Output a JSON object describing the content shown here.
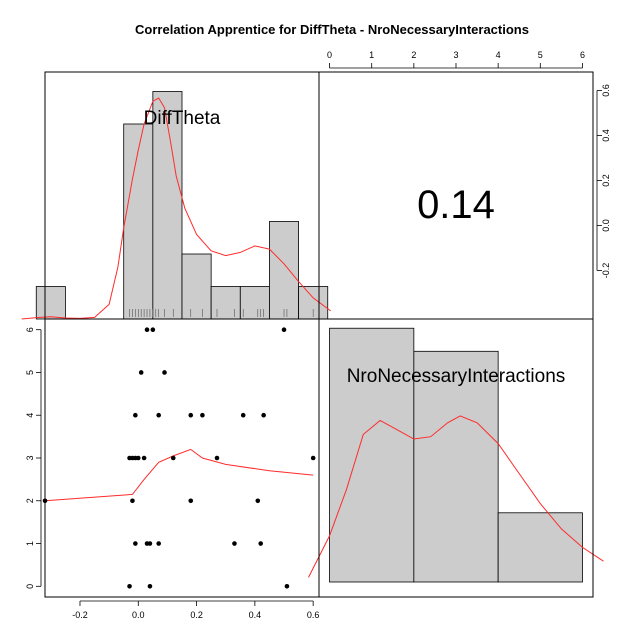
{
  "chart_data": {
    "type": "scatter",
    "title": "Correlation Apprentice for DiffTheta - NroNecessaryInteractions",
    "variables": [
      "DiffTheta",
      "NroNecessaryInteractions"
    ],
    "correlation_label": "0.14",
    "colors": {
      "hist_fill": "#cccccc",
      "density_line": "#ff2b2b",
      "frame": "#000000"
    },
    "axes": {
      "DiffTheta": {
        "range": [
          -0.32,
          0.62
        ],
        "ticks": [
          -0.2,
          0.0,
          0.2,
          0.4,
          0.6
        ],
        "tick_labels": [
          "-0.2",
          "0.0",
          "0.2",
          "0.4",
          "0.6"
        ]
      },
      "NroNecessaryInteractions": {
        "range": [
          -0.25,
          6.25
        ],
        "ticks": [
          0,
          1,
          2,
          3,
          4,
          5,
          6
        ],
        "tick_labels": [
          "0",
          "1",
          "2",
          "3",
          "4",
          "5",
          "6"
        ]
      },
      "top_axis": {
        "ticks": [
          0,
          1,
          2,
          3,
          4,
          5,
          6
        ],
        "tick_labels": [
          "0",
          "1",
          "2",
          "3",
          "4",
          "5",
          "6"
        ]
      },
      "right_axis": {
        "ticks": [
          -0.2,
          0.0,
          0.2,
          0.4,
          0.6
        ],
        "tick_labels": [
          "-0.2",
          "0.0",
          "0.2",
          "0.4",
          "0.6"
        ]
      }
    },
    "hist_difftheta": {
      "bins": [
        [
          -0.35,
          -0.25
        ],
        [
          -0.05,
          0.05
        ],
        [
          0.05,
          0.15
        ],
        [
          0.15,
          0.25
        ],
        [
          0.25,
          0.35
        ],
        [
          0.35,
          0.45
        ],
        [
          0.45,
          0.55
        ],
        [
          0.55,
          0.65
        ]
      ],
      "heights": [
        1,
        6,
        7,
        2,
        1,
        1,
        3,
        1
      ],
      "max_height": 7.6
    },
    "density_difftheta": {
      "x": [
        -0.4,
        -0.34,
        -0.3,
        -0.25,
        -0.2,
        -0.15,
        -0.1,
        -0.07,
        -0.05,
        -0.02,
        0.0,
        0.02,
        0.05,
        0.07,
        0.09,
        0.11,
        0.13,
        0.16,
        0.2,
        0.25,
        0.3,
        0.35,
        0.4,
        0.45,
        0.5,
        0.55,
        0.6,
        0.66
      ],
      "y": [
        0.0,
        0.05,
        0.07,
        0.03,
        0.02,
        0.05,
        0.45,
        1.6,
        2.8,
        4.3,
        5.2,
        6.0,
        6.7,
        6.8,
        6.5,
        5.5,
        4.4,
        3.4,
        2.6,
        2.1,
        1.95,
        2.05,
        2.25,
        2.15,
        1.7,
        1.15,
        0.65,
        0.25
      ]
    },
    "hist_nro": {
      "bins": [
        [
          0,
          2
        ],
        [
          2,
          4
        ],
        [
          4,
          6
        ]
      ],
      "heights": [
        11,
        10,
        3
      ],
      "max_height": 11.4
    },
    "density_nro": {
      "x": [
        -0.5,
        0.0,
        0.4,
        0.8,
        1.2,
        1.6,
        2.0,
        2.4,
        2.8,
        3.1,
        3.5,
        4.0,
        4.5,
        5.0,
        5.5,
        6.0,
        6.5
      ],
      "y": [
        0.2,
        2.0,
        4.0,
        6.4,
        7.0,
        6.6,
        6.2,
        6.3,
        6.9,
        7.2,
        6.9,
        6.0,
        4.7,
        3.4,
        2.3,
        1.5,
        0.9
      ]
    },
    "points": [
      [
        -0.32,
        2
      ],
      [
        -0.03,
        3
      ],
      [
        -0.02,
        3
      ],
      [
        -0.01,
        3
      ],
      [
        0.0,
        3
      ],
      [
        0.02,
        3
      ],
      [
        0.12,
        3
      ],
      [
        0.27,
        3
      ],
      [
        0.6,
        3
      ],
      [
        -0.02,
        2
      ],
      [
        0.18,
        2
      ],
      [
        0.41,
        2
      ],
      [
        -0.01,
        1
      ],
      [
        0.03,
        1
      ],
      [
        0.04,
        1
      ],
      [
        0.07,
        1
      ],
      [
        0.33,
        1
      ],
      [
        0.42,
        1
      ],
      [
        -0.03,
        0
      ],
      [
        0.04,
        0
      ],
      [
        0.51,
        0
      ],
      [
        -0.01,
        4
      ],
      [
        0.07,
        4
      ],
      [
        0.18,
        4
      ],
      [
        0.22,
        4
      ],
      [
        0.36,
        4
      ],
      [
        0.43,
        4
      ],
      [
        0.01,
        5
      ],
      [
        0.09,
        5
      ],
      [
        0.03,
        6
      ],
      [
        0.05,
        6
      ],
      [
        0.5,
        6
      ]
    ],
    "smoother": {
      "x": [
        -0.32,
        -0.02,
        0.02,
        0.07,
        0.12,
        0.18,
        0.22,
        0.3,
        0.45,
        0.6
      ],
      "y": [
        2.0,
        2.15,
        2.5,
        2.9,
        3.05,
        3.2,
        3.0,
        2.85,
        2.7,
        2.6
      ]
    },
    "rug_difftheta": [
      -0.03,
      -0.02,
      -0.01,
      0.0,
      0.01,
      0.02,
      0.03,
      0.04,
      0.05,
      0.06,
      0.07,
      0.09,
      0.12,
      0.18,
      0.22,
      0.27,
      0.33,
      0.36,
      0.41,
      0.42,
      0.43,
      0.5,
      0.51,
      0.6
    ]
  }
}
